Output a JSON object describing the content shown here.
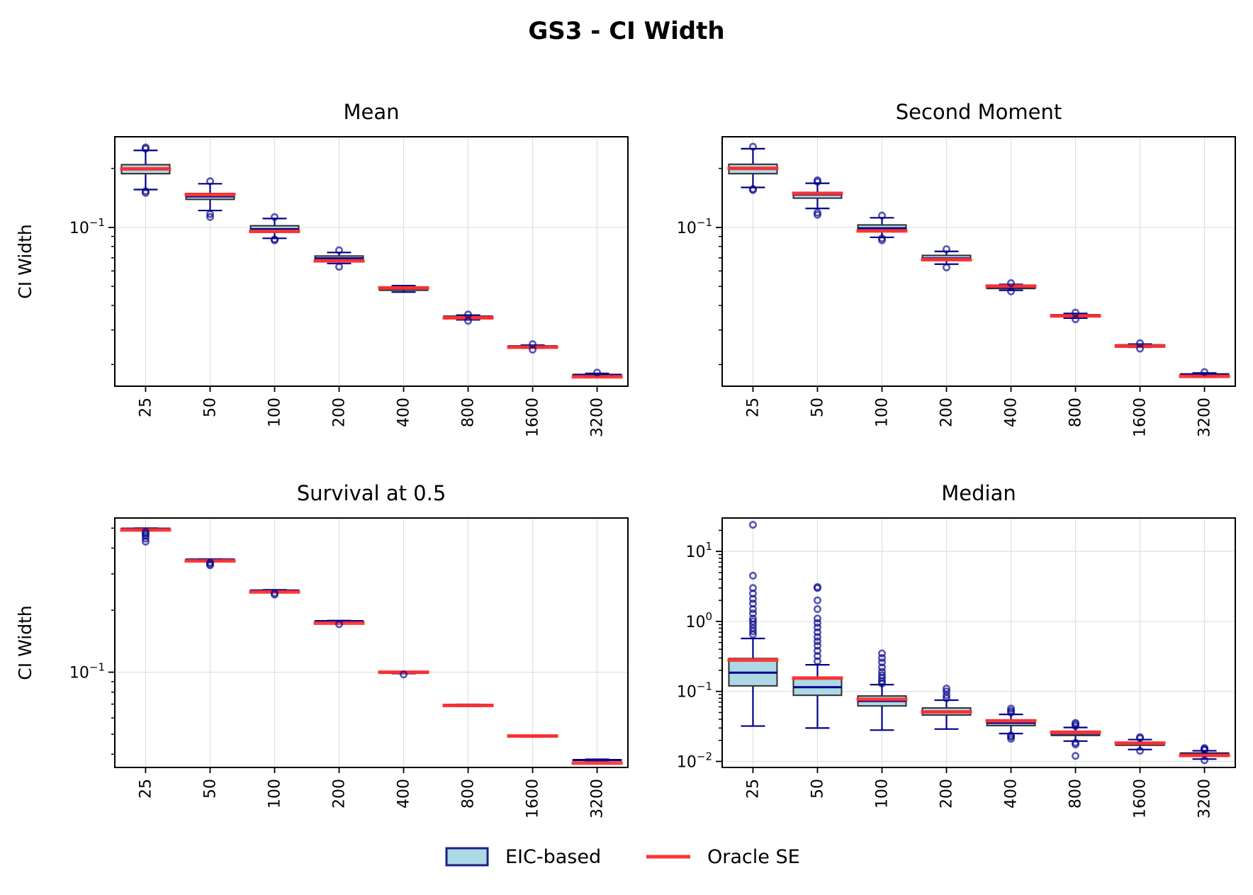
{
  "figure": {
    "title": "GS3 - CI Width"
  },
  "legend": {
    "position": "bottom-center",
    "items": [
      {
        "label": "EIC-based",
        "kind": "box",
        "face": "#add8e6",
        "edge": "#1a237e"
      },
      {
        "label": "Oracle SE",
        "kind": "line",
        "color": "#ff3333"
      }
    ]
  },
  "colors": {
    "box_face": "#add8e6",
    "box_edge": "#2f2f2f",
    "whisker": "#00008b",
    "median": "#00008b",
    "oracle": "#ff3333",
    "flier": "#00008b",
    "grid": "#e0e0e0"
  },
  "chart_data": [
    {
      "type": "box",
      "title": "Mean",
      "xlabel": "",
      "ylabel": "CI Width",
      "yscale": "log",
      "ylim": [
        0.0155,
        0.29
      ],
      "major_ticks": [
        {
          "value": 0.1,
          "base": "10",
          "exp": "−1"
        }
      ],
      "minor_ticks": [
        0.02,
        0.03,
        0.04,
        0.05,
        0.06,
        0.07,
        0.08,
        0.09,
        0.2
      ],
      "categories": [
        "25",
        "50",
        "100",
        "200",
        "400",
        "800",
        "1600",
        "3200"
      ],
      "boxes": [
        {
          "whislo": 0.156,
          "q1": 0.188,
          "med": 0.199,
          "q3": 0.209,
          "whishi": 0.247,
          "oracle": 0.199,
          "fliers": [
            0.15,
            0.153,
            0.252,
            0.256
          ]
        },
        {
          "whislo": 0.122,
          "q1": 0.139,
          "med": 0.144,
          "q3": 0.149,
          "whishi": 0.167,
          "oracle": 0.147,
          "fliers": [
            0.113,
            0.117,
            0.172
          ]
        },
        {
          "whislo": 0.088,
          "q1": 0.095,
          "med": 0.098,
          "q3": 0.102,
          "whishi": 0.111,
          "oracle": 0.0955,
          "fliers": [
            0.086,
            0.087,
            0.113
          ]
        },
        {
          "whislo": 0.0655,
          "q1": 0.0675,
          "med": 0.0695,
          "q3": 0.0715,
          "whishi": 0.0745,
          "oracle": 0.0675,
          "fliers": [
            0.063,
            0.0765
          ]
        },
        {
          "whislo": 0.0468,
          "q1": 0.0478,
          "med": 0.0488,
          "q3": 0.0496,
          "whishi": 0.0505,
          "oracle": 0.0492,
          "fliers": []
        },
        {
          "whislo": 0.0338,
          "q1": 0.0344,
          "med": 0.0348,
          "q3": 0.0353,
          "whishi": 0.0357,
          "oracle": 0.0346,
          "fliers": [
            0.0334,
            0.036
          ]
        },
        {
          "whislo": 0.0242,
          "q1": 0.0245,
          "med": 0.0247,
          "q3": 0.0249,
          "whishi": 0.0251,
          "oracle": 0.0245,
          "fliers": [
            0.0238,
            0.0254
          ]
        },
        {
          "whislo": 0.0173,
          "q1": 0.0175,
          "med": 0.0177,
          "q3": 0.0178,
          "whishi": 0.018,
          "oracle": 0.0173,
          "fliers": [
            0.0182
          ]
        }
      ]
    },
    {
      "type": "box",
      "title": "Second Moment",
      "xlabel": "",
      "ylabel": "",
      "yscale": "log",
      "ylim": [
        0.0155,
        0.29
      ],
      "major_ticks": [
        {
          "value": 0.1,
          "base": "10",
          "exp": "−1"
        }
      ],
      "minor_ticks": [
        0.02,
        0.03,
        0.04,
        0.05,
        0.06,
        0.07,
        0.08,
        0.09,
        0.2
      ],
      "categories": [
        "25",
        "50",
        "100",
        "200",
        "400",
        "800",
        "1600",
        "3200"
      ],
      "boxes": [
        {
          "whislo": 0.16,
          "q1": 0.188,
          "med": 0.2,
          "q3": 0.21,
          "whishi": 0.252,
          "oracle": 0.2,
          "fliers": [
            0.155,
            0.157,
            0.258
          ]
        },
        {
          "whislo": 0.125,
          "q1": 0.141,
          "med": 0.147,
          "q3": 0.151,
          "whishi": 0.168,
          "oracle": 0.149,
          "fliers": [
            0.116,
            0.119,
            0.171,
            0.174
          ]
        },
        {
          "whislo": 0.089,
          "q1": 0.096,
          "med": 0.099,
          "q3": 0.103,
          "whishi": 0.112,
          "oracle": 0.096,
          "fliers": [
            0.086,
            0.088,
            0.115
          ]
        },
        {
          "whislo": 0.065,
          "q1": 0.068,
          "med": 0.0695,
          "q3": 0.072,
          "whishi": 0.0755,
          "oracle": 0.0685,
          "fliers": [
            0.0625,
            0.0775
          ]
        },
        {
          "whislo": 0.0478,
          "q1": 0.0488,
          "med": 0.0496,
          "q3": 0.0504,
          "whishi": 0.0512,
          "oracle": 0.0502,
          "fliers": [
            0.0472,
            0.052
          ]
        },
        {
          "whislo": 0.0345,
          "q1": 0.0351,
          "med": 0.0355,
          "q3": 0.0359,
          "whishi": 0.0364,
          "oracle": 0.0354,
          "fliers": [
            0.034,
            0.0368
          ]
        },
        {
          "whislo": 0.0245,
          "q1": 0.0248,
          "med": 0.025,
          "q3": 0.0252,
          "whishi": 0.0254,
          "oracle": 0.0248,
          "fliers": [
            0.0241,
            0.0257
          ]
        },
        {
          "whislo": 0.0174,
          "q1": 0.0176,
          "med": 0.0178,
          "q3": 0.0179,
          "whishi": 0.0181,
          "oracle": 0.0174,
          "fliers": [
            0.0183
          ]
        }
      ]
    },
    {
      "type": "box",
      "title": "Survival at 0.5",
      "xlabel": "",
      "ylabel": "CI Width",
      "yscale": "log",
      "ylim": [
        0.0345,
        0.56
      ],
      "major_ticks": [
        {
          "value": 0.1,
          "base": "10",
          "exp": "−1"
        }
      ],
      "minor_ticks": [
        0.04,
        0.05,
        0.06,
        0.07,
        0.08,
        0.09,
        0.2,
        0.3,
        0.4,
        0.5
      ],
      "categories": [
        "25",
        "50",
        "100",
        "200",
        "400",
        "800",
        "1600",
        "3200"
      ],
      "boxes": [
        {
          "whislo": 0.49,
          "q1": 0.495,
          "med": 0.497,
          "q3": 0.499,
          "whishi": 0.5,
          "oracle": 0.49,
          "fliers": [
            0.43,
            0.445,
            0.46,
            0.47,
            0.48
          ]
        },
        {
          "whislo": 0.347,
          "q1": 0.35,
          "med": 0.352,
          "q3": 0.353,
          "whishi": 0.354,
          "oracle": 0.347,
          "fliers": [
            0.33,
            0.335,
            0.34
          ]
        },
        {
          "whislo": 0.247,
          "q1": 0.248,
          "med": 0.249,
          "q3": 0.25,
          "whishi": 0.251,
          "oracle": 0.245,
          "fliers": [
            0.238,
            0.242
          ]
        },
        {
          "whislo": 0.175,
          "q1": 0.176,
          "med": 0.177,
          "q3": 0.177,
          "whishi": 0.178,
          "oracle": 0.173,
          "fliers": [
            0.171
          ]
        },
        {
          "whislo": 0.0985,
          "q1": 0.099,
          "med": 0.0995,
          "q3": 0.1,
          "whishi": 0.1005,
          "oracle": 0.1,
          "fliers": [
            0.0975
          ]
        },
        {
          "whislo": 0.0685,
          "q1": 0.069,
          "med": 0.0693,
          "q3": 0.0695,
          "whishi": 0.0698,
          "oracle": 0.069,
          "fliers": []
        },
        {
          "whislo": 0.0485,
          "q1": 0.0488,
          "med": 0.049,
          "q3": 0.0491,
          "whishi": 0.0493,
          "oracle": 0.049,
          "fliers": []
        },
        {
          "whislo": 0.0372,
          "q1": 0.0373,
          "med": 0.0375,
          "q3": 0.0376,
          "whishi": 0.0378,
          "oracle": 0.0362,
          "fliers": []
        }
      ]
    },
    {
      "type": "box",
      "title": "Median",
      "xlabel": "",
      "ylabel": "",
      "yscale": "log",
      "ylim": [
        0.0082,
        30
      ],
      "major_ticks": [
        {
          "value": 0.01,
          "base": "10",
          "exp": "−2"
        },
        {
          "value": 0.1,
          "base": "10",
          "exp": "−1"
        },
        {
          "value": 1,
          "base": "10",
          "exp": "0"
        },
        {
          "value": 10,
          "base": "10",
          "exp": "1"
        }
      ],
      "minor_ticks": [
        0.02,
        0.03,
        0.04,
        0.05,
        0.06,
        0.07,
        0.08,
        0.09,
        0.2,
        0.3,
        0.4,
        0.5,
        0.6,
        0.7,
        0.8,
        0.9,
        2,
        3,
        4,
        5,
        6,
        7,
        8,
        9,
        20
      ],
      "categories": [
        "25",
        "50",
        "100",
        "200",
        "400",
        "800",
        "1600",
        "3200"
      ],
      "boxes": [
        {
          "whislo": 0.032,
          "q1": 0.12,
          "med": 0.185,
          "q3": 0.295,
          "whishi": 0.57,
          "oracle": 0.28,
          "fliers": [
            0.65,
            0.72,
            0.8,
            0.9,
            1.0,
            1.1,
            1.3,
            1.5,
            1.8,
            2.1,
            2.5,
            3.0,
            4.5,
            24
          ]
        },
        {
          "whislo": 0.03,
          "q1": 0.088,
          "med": 0.115,
          "q3": 0.155,
          "whishi": 0.24,
          "oracle": 0.155,
          "fliers": [
            0.27,
            0.32,
            0.38,
            0.45,
            0.52,
            0.6,
            0.7,
            0.82,
            0.95,
            1.1,
            1.5,
            2.0,
            3.0,
            3.1
          ]
        },
        {
          "whislo": 0.028,
          "q1": 0.062,
          "med": 0.073,
          "q3": 0.086,
          "whishi": 0.125,
          "oracle": 0.077,
          "fliers": [
            0.13,
            0.14,
            0.155,
            0.17,
            0.19,
            0.22,
            0.26,
            0.3,
            0.35
          ]
        },
        {
          "whislo": 0.029,
          "q1": 0.046,
          "med": 0.051,
          "q3": 0.058,
          "whishi": 0.075,
          "oracle": 0.051,
          "fliers": [
            0.08,
            0.088,
            0.1,
            0.11
          ]
        },
        {
          "whislo": 0.025,
          "q1": 0.0325,
          "med": 0.0355,
          "q3": 0.039,
          "whishi": 0.047,
          "oracle": 0.038,
          "fliers": [
            0.021,
            0.0225,
            0.0235,
            0.05,
            0.053,
            0.057
          ]
        },
        {
          "whislo": 0.0195,
          "q1": 0.0235,
          "med": 0.025,
          "q3": 0.027,
          "whishi": 0.0305,
          "oracle": 0.026,
          "fliers": [
            0.012,
            0.0175,
            0.0185,
            0.032,
            0.034,
            0.0355
          ]
        },
        {
          "whislo": 0.0148,
          "q1": 0.017,
          "med": 0.018,
          "q3": 0.0188,
          "whishi": 0.0205,
          "oracle": 0.0182,
          "fliers": [
            0.0142,
            0.0215,
            0.0222
          ]
        },
        {
          "whislo": 0.0108,
          "q1": 0.012,
          "med": 0.0127,
          "q3": 0.0132,
          "whishi": 0.0142,
          "oracle": 0.0122,
          "fliers": [
            0.0104,
            0.0146,
            0.015,
            0.0155
          ]
        }
      ]
    }
  ]
}
